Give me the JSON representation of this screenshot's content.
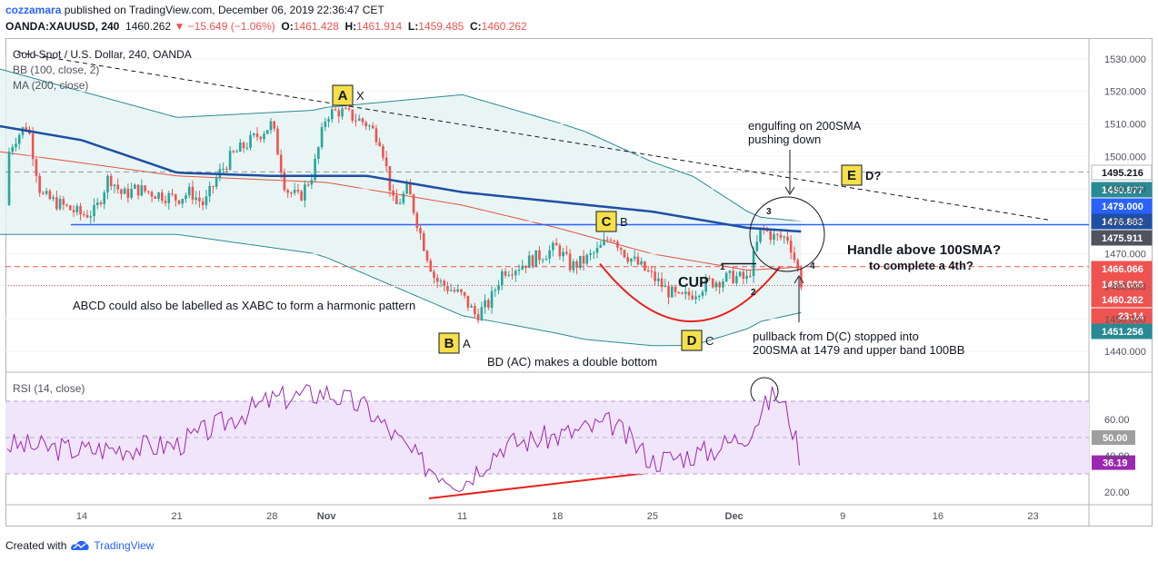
{
  "header": {
    "author": "cozzamara",
    "published_text": "published on TradingView.com, December 06, 2019 22:36:47 CET",
    "symbol": "OANDA:XAUUSD, 240",
    "last": "1460.262",
    "change": "−15.649 (−1.06%)",
    "ohlc": {
      "o_label": "O:",
      "o": "1461.428",
      "h_label": "H:",
      "h": "1461.914",
      "l_label": "L:",
      "l": "1459.485",
      "c_label": "C:",
      "c": "1460.262"
    }
  },
  "legend": {
    "title": "Gold Spot / U.S. Dollar, 240, OANDA",
    "bb": "BB (100, close, 2)",
    "ma": "MA (200, close)"
  },
  "rsi_legend": "RSI (14, close)",
  "footer": {
    "created_with": "Created with",
    "brand": "TradingView"
  },
  "colors": {
    "up": "#26a69a",
    "down": "#ef5350",
    "sma200": "#1e4fa3",
    "bb_basis": "#e0533f",
    "bb_band": "#2a8a94",
    "bb_fill": "#e3f3f1",
    "rsi": "#9c27b0",
    "rsi_fill": "#f1e5fb",
    "label_box": "#f5e04a",
    "level_blue": "#2962ff"
  },
  "annotations": {
    "engulfing": [
      "engulfing on 200SMA",
      "pushing down"
    ],
    "handle": [
      "Handle above 100SMA?",
      "to complete a 4th?"
    ],
    "abcd_note": "ABCD could also be labelled as XABC to form a harmonic pattern",
    "pullback": [
      "pullback from D(C) stopped into",
      "200SMA at 1479 and upper band 100BB"
    ],
    "bd_note": "BD (AC) makes a double bottom",
    "cup": "CUP",
    "n1": "1",
    "n2": "2",
    "n3": "3",
    "n4": "4",
    "points": [
      {
        "box": "A",
        "sub": "X"
      },
      {
        "box": "B",
        "sub": "A"
      },
      {
        "box": "C",
        "sub": "B"
      },
      {
        "box": "D",
        "sub": "C"
      },
      {
        "box": "E",
        "sub": "D?"
      }
    ]
  },
  "price_tags": [
    {
      "label": "1495.216",
      "value": 1495.216,
      "bg": "#ffffff",
      "fg": "#131722"
    },
    {
      "label": "1480.877",
      "value": 1480.877,
      "bg": "#2a8a94",
      "fg": "#ffffff"
    },
    {
      "label": "1479.000",
      "value": 1479.0,
      "bg": "#2962ff",
      "fg": "#ffffff"
    },
    {
      "label": "1476.882",
      "value": 1476.882,
      "bg": "#1e4fa3",
      "fg": "#ffffff"
    },
    {
      "label": "1475.911",
      "value": 1475.911,
      "bg": "#50535e",
      "fg": "#ffffff"
    },
    {
      "label": "1466.066",
      "value": 1466.066,
      "bg": "#ef5350",
      "fg": "#ffffff"
    },
    {
      "label": "1465.000",
      "value": 1465.0,
      "bg": "#ef5350",
      "fg": "#ffffff"
    },
    {
      "label": "1460.262",
      "value": 1460.262,
      "bg": "#ef5350",
      "fg": "#ffffff"
    },
    {
      "label": "23:14",
      "value": 1455.6,
      "bg": "#ef5350",
      "fg": "#ffffff"
    },
    {
      "label": "1451.256",
      "value": 1451.256,
      "bg": "#2a8a94",
      "fg": "#ffffff"
    }
  ],
  "rsi_tags": [
    {
      "label": "50.00",
      "value": 50,
      "bg": "#9e9e9e",
      "fg": "#ffffff"
    },
    {
      "label": "36.19",
      "value": 36.19,
      "bg": "#9c27b0",
      "fg": "#ffffff"
    }
  ],
  "chart_data": [
    {
      "type": "candlestick",
      "title": "Gold Spot / U.S. Dollar, 240, OANDA",
      "x_ticks": [
        "14",
        "21",
        "28",
        "Nov",
        "11",
        "18",
        "25",
        "Dec",
        "9",
        "16",
        "23"
      ],
      "y_ticks": [
        "1530.000",
        "1520.000",
        "1510.000",
        "1500.000",
        "1490.000",
        "1480.000",
        "1470.000",
        "1460.000",
        "1450.000",
        "1440.000"
      ],
      "ylim": [
        1435,
        1535
      ],
      "close_path": [
        {
          "x": "Oct 7",
          "y": 1485
        },
        {
          "x": "Oct 9",
          "y": 1505
        },
        {
          "x": "Oct 10",
          "y": 1510
        },
        {
          "x": "Oct 11",
          "y": 1488
        },
        {
          "x": "Oct 14",
          "y": 1482
        },
        {
          "x": "Oct 15",
          "y": 1483
        },
        {
          "x": "Oct 16",
          "y": 1494
        },
        {
          "x": "Oct 17",
          "y": 1488
        },
        {
          "x": "Oct 18",
          "y": 1490
        },
        {
          "x": "Oct 21",
          "y": 1487
        },
        {
          "x": "Oct 22",
          "y": 1489
        },
        {
          "x": "Oct 23",
          "y": 1485
        },
        {
          "x": "Oct 24",
          "y": 1494
        },
        {
          "x": "Oct 25",
          "y": 1500
        },
        {
          "x": "Oct 28",
          "y": 1510
        },
        {
          "x": "Oct 29",
          "y": 1490
        },
        {
          "x": "Oct 30",
          "y": 1487
        },
        {
          "x": "Oct 31",
          "y": 1495
        },
        {
          "x": "Nov 1",
          "y": 1513
        },
        {
          "x": "Nov 2",
          "y": 1514
        },
        {
          "x": "Nov 4",
          "y": 1510
        },
        {
          "x": "Nov 5",
          "y": 1505
        },
        {
          "x": "Nov 6",
          "y": 1484
        },
        {
          "x": "Nov 7",
          "y": 1490
        },
        {
          "x": "Nov 8",
          "y": 1475
        },
        {
          "x": "Nov 9",
          "y": 1462
        },
        {
          "x": "Nov 11",
          "y": 1457
        },
        {
          "x": "Nov 12",
          "y": 1451
        },
        {
          "x": "Nov 13",
          "y": 1455
        },
        {
          "x": "Nov 14",
          "y": 1465
        },
        {
          "x": "Nov 15",
          "y": 1466
        },
        {
          "x": "Nov 18",
          "y": 1472
        },
        {
          "x": "Nov 19",
          "y": 1466
        },
        {
          "x": "Nov 20",
          "y": 1468
        },
        {
          "x": "Nov 21",
          "y": 1471
        },
        {
          "x": "Nov 22",
          "y": 1476
        },
        {
          "x": "Nov 23",
          "y": 1470
        },
        {
          "x": "Nov 25",
          "y": 1463
        },
        {
          "x": "Nov 26",
          "y": 1459
        },
        {
          "x": "Nov 27",
          "y": 1456
        },
        {
          "x": "Nov 28",
          "y": 1458
        },
        {
          "x": "Nov 29",
          "y": 1461
        },
        {
          "x": "Dec 1",
          "y": 1463
        },
        {
          "x": "Dec 2",
          "y": 1462
        },
        {
          "x": "Dec 3",
          "y": 1478
        },
        {
          "x": "Dec 4",
          "y": 1475
        },
        {
          "x": "Dec 5",
          "y": 1475
        },
        {
          "x": "Dec 6",
          "y": 1460.262
        }
      ],
      "series": [
        {
          "name": "MA (200, close)",
          "values": [
            {
              "x": "Oct 7",
              "y": 1510
            },
            {
              "x": "Oct 14",
              "y": 1505
            },
            {
              "x": "Oct 21",
              "y": 1495
            },
            {
              "x": "Oct 28",
              "y": 1494
            },
            {
              "x": "Nov 4",
              "y": 1494
            },
            {
              "x": "Nov 11",
              "y": 1489
            },
            {
              "x": "Nov 18",
              "y": 1486
            },
            {
              "x": "Nov 25",
              "y": 1483
            },
            {
              "x": "Dec 2",
              "y": 1478
            },
            {
              "x": "Dec 6",
              "y": 1476.882
            }
          ]
        },
        {
          "name": "BB (100, close, 2)",
          "values": [
            {
              "x": "Oct 7",
              "y": 1502
            },
            {
              "x": "Oct 21",
              "y": 1494
            },
            {
              "x": "Nov 1",
              "y": 1492
            },
            {
              "x": "Nov 11",
              "y": 1485
            },
            {
              "x": "Nov 18",
              "y": 1478
            },
            {
              "x": "Nov 25",
              "y": 1470
            },
            {
              "x": "Dec 2",
              "y": 1465
            },
            {
              "x": "Dec 6",
              "y": 1466
            }
          ]
        }
      ],
      "levels": [
        1495.216,
        1479.0,
        1466.066,
        1465.0,
        1460.262
      ],
      "last_close": 1460.262
    },
    {
      "type": "line",
      "title": "RSI (14, close)",
      "y_ticks": [
        "60.00",
        "40.00",
        "20.00"
      ],
      "ylim": [
        15,
        85
      ],
      "bands": [
        30,
        70
      ],
      "values": [
        {
          "x": "Oct 7",
          "y": 47
        },
        {
          "x": "Oct 14",
          "y": 43
        },
        {
          "x": "Oct 21",
          "y": 46
        },
        {
          "x": "Oct 28",
          "y": 71
        },
        {
          "x": "Nov 1",
          "y": 75
        },
        {
          "x": "Nov 4",
          "y": 66
        },
        {
          "x": "Nov 8",
          "y": 36
        },
        {
          "x": "Nov 11",
          "y": 25
        },
        {
          "x": "Nov 14",
          "y": 46
        },
        {
          "x": "Nov 18",
          "y": 51
        },
        {
          "x": "Nov 22",
          "y": 58
        },
        {
          "x": "Nov 25",
          "y": 37
        },
        {
          "x": "Nov 29",
          "y": 42
        },
        {
          "x": "Dec 2",
          "y": 52
        },
        {
          "x": "Dec 4",
          "y": 75
        },
        {
          "x": "Dec 5",
          "y": 63
        },
        {
          "x": "Dec 6",
          "y": 36.19
        }
      ],
      "last": 36.19
    }
  ]
}
